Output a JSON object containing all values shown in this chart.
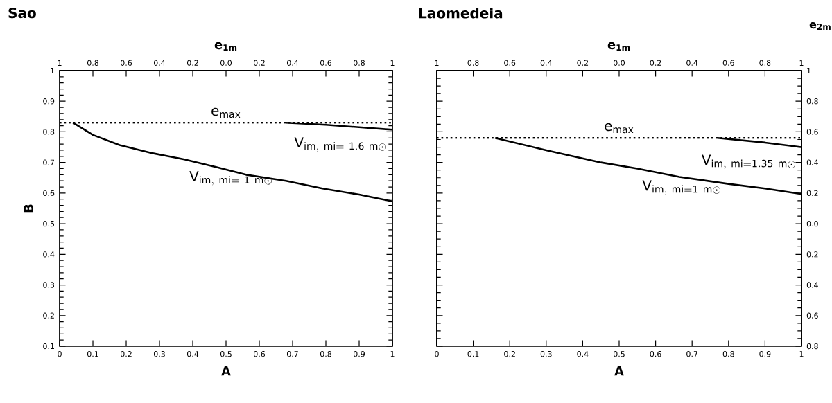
{
  "chart_data": [
    {
      "type": "line",
      "title": "Sao",
      "xlabel": "A",
      "ylabel": "B",
      "x2label": "e$_{1m}$",
      "xlim": [
        0,
        1
      ],
      "xticks": [
        0,
        0.1,
        0.2,
        0.3,
        0.4,
        0.5,
        0.6,
        0.7,
        0.8,
        0.9,
        1
      ],
      "ylim": [
        0.1,
        1
      ],
      "yticks": [
        0.1,
        0.2,
        0.3,
        0.4,
        0.5,
        0.6,
        0.7,
        0.8,
        0.9,
        1
      ],
      "x2lim": [
        1,
        -1
      ],
      "x2ticks": [
        {
          "value": 1,
          "label": "1"
        },
        {
          "value": 0.8,
          "label": "0.8"
        },
        {
          "value": 0.6,
          "label": "0.6"
        },
        {
          "value": 0.4,
          "label": "0.4"
        },
        {
          "value": 0.2,
          "label": "0.2"
        },
        {
          "value": 0,
          "label": "0.0"
        },
        {
          "value": -0.2,
          "label": "0.2"
        },
        {
          "value": -0.4,
          "label": "0.4"
        },
        {
          "value": -0.6,
          "label": "0.6"
        },
        {
          "value": -0.8,
          "label": "0.8"
        },
        {
          "value": -1,
          "label": "1"
        }
      ],
      "ref_lines": [
        {
          "axis": "y",
          "value": 0.83,
          "label": "e$_{max}$",
          "line_style": "dotted"
        }
      ],
      "line_style": "solid",
      "marker": "none",
      "series": [
        {
          "name": "\\mathrm{V}_{\\mathrm{im,\\ mi=\\ 1.6\\ m}\\odot}",
          "color": "#000000",
          "x": [
            0.68,
            0.8,
            0.9,
            1
          ],
          "values": [
            0.83,
            0.823,
            0.815,
            0.807
          ]
        },
        {
          "name": "\\mathrm{V}_{\\mathrm{im,\\ mi=\\ 1\\ m}\\odot}",
          "color": "#000000",
          "x": [
            0.04,
            0.1,
            0.18,
            0.28,
            0.375,
            0.47,
            0.56,
            0.68,
            0.79,
            0.9,
            1
          ],
          "values": [
            0.83,
            0.79,
            0.757,
            0.73,
            0.71,
            0.685,
            0.66,
            0.64,
            0.615,
            0.595,
            0.573
          ]
        }
      ]
    },
    {
      "type": "line",
      "title": "Laomedeia",
      "xlabel": "A",
      "x2label": "e$_{1m}$",
      "y2label": "e$_{2m}$",
      "xlim": [
        0,
        1
      ],
      "xticks": [
        0,
        0.1,
        0.2,
        0.3,
        0.4,
        0.5,
        0.6,
        0.7,
        0.8,
        0.9,
        1
      ],
      "ylim": [
        0.1,
        1
      ],
      "x2lim": [
        1,
        -1
      ],
      "x2ticks": [
        {
          "value": 1,
          "label": "1"
        },
        {
          "value": 0.8,
          "label": "0.8"
        },
        {
          "value": 0.6,
          "label": "0.6"
        },
        {
          "value": 0.4,
          "label": "0.4"
        },
        {
          "value": 0.2,
          "label": "0.2"
        },
        {
          "value": 0,
          "label": "0.0"
        },
        {
          "value": -0.2,
          "label": "0.2"
        },
        {
          "value": -0.4,
          "label": "0.4"
        },
        {
          "value": -0.6,
          "label": "0.6"
        },
        {
          "value": -0.8,
          "label": "0.8"
        },
        {
          "value": -1,
          "label": "1"
        }
      ],
      "y2lim": [
        -0.8,
        1
      ],
      "y2ticks": [
        {
          "value": 1,
          "label": "1"
        },
        {
          "value": 0.8,
          "label": "0.8"
        },
        {
          "value": 0.6,
          "label": "0.6"
        },
        {
          "value": 0.4,
          "label": "0.4"
        },
        {
          "value": 0.2,
          "label": "0.2"
        },
        {
          "value": 0,
          "label": "0.0"
        },
        {
          "value": -0.2,
          "label": "0.2"
        },
        {
          "value": -0.4,
          "label": "0.4"
        },
        {
          "value": -0.6,
          "label": "0.6"
        },
        {
          "value": -0.8,
          "label": "0.8"
        }
      ],
      "ref_lines": [
        {
          "axis": "y",
          "value": 0.78,
          "label": "e$_{max}$",
          "line_style": "dotted"
        }
      ],
      "line_style": "solid",
      "marker": "none",
      "series": [
        {
          "name": "\\mathrm{V}_{\\mathrm{im,\\ mi=1.35\\ m}\\odot}",
          "color": "#000000",
          "x": [
            0.77,
            0.9,
            1
          ],
          "values": [
            0.78,
            0.765,
            0.75
          ]
        },
        {
          "name": "\\mathrm{V}_{\\mathrm{im,\\ mi=1\\ m}\\odot}",
          "color": "#000000",
          "x": [
            0.16,
            0.3,
            0.45,
            0.55,
            0.665,
            0.8,
            0.9,
            1
          ],
          "values": [
            0.78,
            0.74,
            0.7,
            0.68,
            0.653,
            0.63,
            0.615,
            0.597
          ]
        }
      ]
    }
  ]
}
